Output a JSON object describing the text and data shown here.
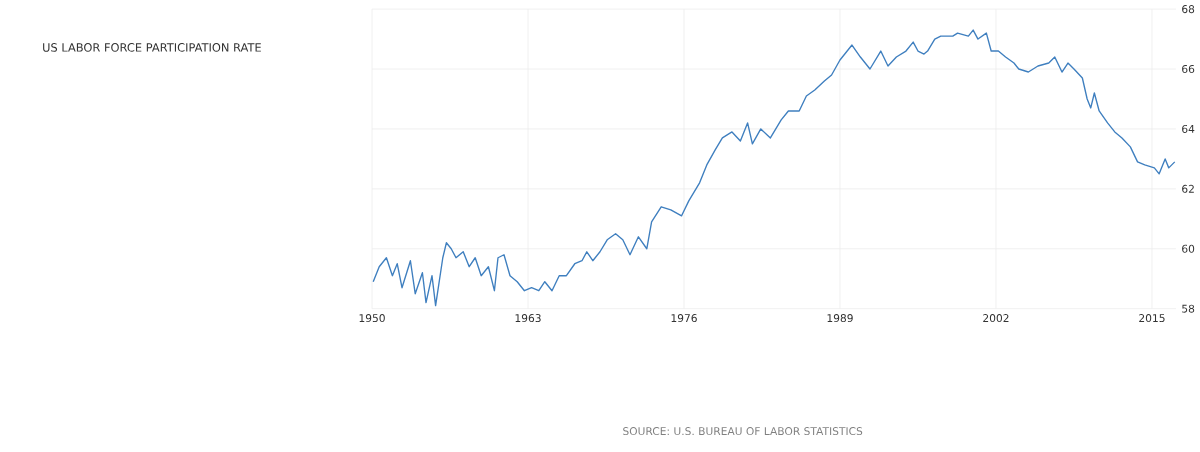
{
  "chart_data": {
    "type": "line",
    "title": "US LABOR FORCE PARTICIPATION RATE",
    "annotations": [
      "SOURCE: U.S. BUREAU OF LABOR STATISTICS"
    ],
    "x": [
      1950.1,
      1950.6,
      1951.2,
      1951.7,
      1952.1,
      1952.5,
      1953.2,
      1953.6,
      1954.2,
      1954.5,
      1955.0,
      1955.3,
      1955.9,
      1956.2,
      1956.6,
      1957.0,
      1957.6,
      1958.1,
      1958.6,
      1959.1,
      1959.7,
      1960.2,
      1960.5,
      1961.0,
      1961.5,
      1962.1,
      1962.7,
      1963.3,
      1963.9,
      1964.4,
      1965.0,
      1965.6,
      1966.2,
      1966.9,
      1967.5,
      1967.9,
      1968.4,
      1969.0,
      1969.6,
      1970.3,
      1970.9,
      1971.5,
      1972.2,
      1972.9,
      1973.3,
      1974.1,
      1974.9,
      1975.8,
      1976.4,
      1977.3,
      1977.9,
      1978.6,
      1979.2,
      1980.0,
      1980.7,
      1981.3,
      1981.7,
      1982.4,
      1983.2,
      1984.1,
      1984.7,
      1985.6,
      1986.2,
      1986.9,
      1987.7,
      1988.3,
      1989.0,
      1989.4,
      1990.0,
      1990.7,
      1991.5,
      1992.4,
      1993.0,
      1993.7,
      1994.5,
      1995.1,
      1995.5,
      1996.0,
      1996.3,
      1996.9,
      1997.4,
      1998.4,
      1998.8,
      1999.7,
      2000.1,
      2000.5,
      2001.2,
      2001.6,
      2002.2,
      2002.8,
      2003.5,
      2003.9,
      2004.7,
      2005.5,
      2006.4,
      2006.9,
      2007.5,
      2008.0,
      2008.5,
      2009.2,
      2009.6,
      2009.9,
      2010.2,
      2010.6,
      2011.3,
      2011.9,
      2012.5,
      2013.2,
      2013.8,
      2014.4,
      2015.2,
      2015.6,
      2016.1,
      2016.4,
      2016.9
    ],
    "values": [
      58.9,
      59.4,
      59.7,
      59.1,
      59.5,
      58.7,
      59.6,
      58.5,
      59.2,
      58.2,
      59.1,
      58.1,
      59.7,
      60.2,
      60.0,
      59.7,
      59.9,
      59.4,
      59.7,
      59.1,
      59.4,
      58.6,
      59.7,
      59.8,
      59.1,
      58.9,
      58.6,
      58.7,
      58.6,
      58.9,
      58.6,
      59.1,
      59.1,
      59.5,
      59.6,
      59.9,
      59.6,
      59.9,
      60.3,
      60.5,
      60.3,
      59.8,
      60.4,
      60.0,
      60.9,
      61.4,
      61.3,
      61.1,
      61.6,
      62.2,
      62.8,
      63.3,
      63.7,
      63.9,
      63.6,
      64.2,
      63.5,
      64.0,
      63.7,
      64.3,
      64.6,
      64.6,
      65.1,
      65.3,
      65.6,
      65.8,
      66.3,
      66.5,
      66.8,
      66.4,
      66.0,
      66.6,
      66.1,
      66.4,
      66.6,
      66.9,
      66.6,
      66.5,
      66.6,
      67.0,
      67.1,
      67.1,
      67.2,
      67.1,
      67.3,
      67.0,
      67.2,
      66.6,
      66.6,
      66.4,
      66.2,
      66.0,
      65.9,
      66.1,
      66.2,
      66.4,
      65.9,
      66.2,
      66.0,
      65.7,
      65.0,
      64.7,
      65.2,
      64.6,
      64.2,
      63.9,
      63.7,
      63.4,
      62.9,
      62.8,
      62.7,
      62.5,
      63.0,
      62.7,
      62.9
    ],
    "color": "#3f7fbf",
    "xlim": [
      1950,
      2017
    ],
    "ylim": [
      58,
      68
    ],
    "xticks": [
      1950,
      1963,
      1976,
      1989,
      2002,
      2015
    ],
    "yticks": [
      58,
      60,
      62,
      64,
      66,
      68
    ],
    "grid": true
  }
}
